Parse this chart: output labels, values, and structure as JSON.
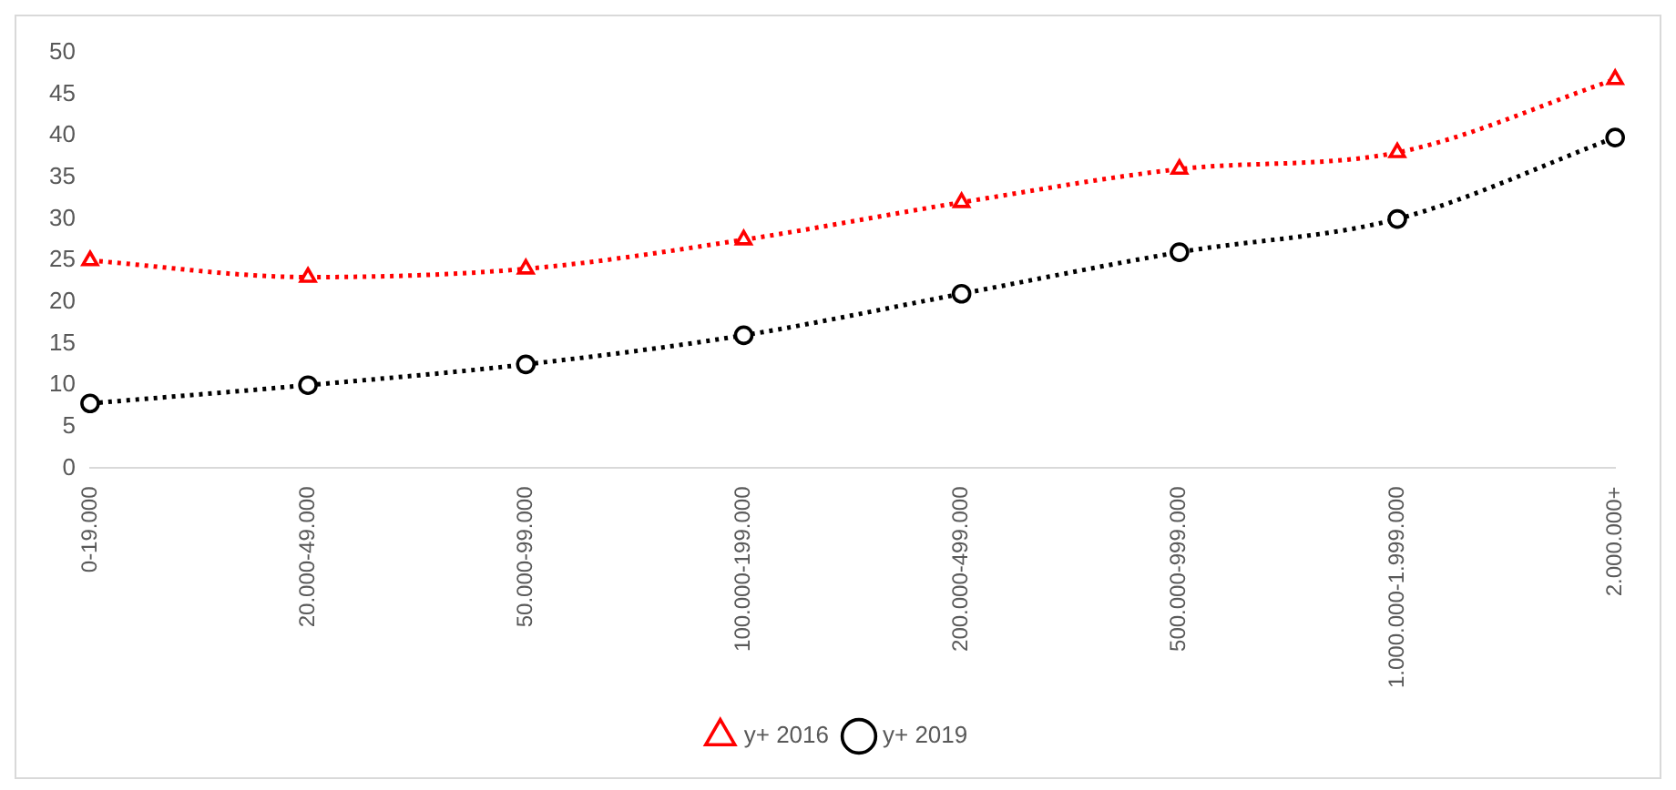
{
  "chart_data": {
    "type": "line",
    "categories": [
      "0-19.000",
      "20.000-49.000",
      "50.000-99.000",
      "100.000-199.000",
      "200.000-499.000",
      "500.000-999.000",
      "1.000.000-1.999.000",
      "2.000.000+"
    ],
    "series": [
      {
        "name": "y+ 2016",
        "color": "#ff0000",
        "marker": "triangle",
        "values": [
          25,
          23,
          24,
          27.5,
          32,
          36,
          38,
          46.8
        ]
      },
      {
        "name": "y+ 2019",
        "color": "#000000",
        "marker": "circle",
        "values": [
          7.8,
          10,
          12.5,
          16,
          21,
          26,
          30,
          39.8
        ]
      }
    ],
    "ylim": [
      0,
      50
    ],
    "yticks": [
      0,
      5,
      10,
      15,
      20,
      25,
      30,
      35,
      40,
      45,
      50
    ],
    "grid": false,
    "legend": "bottom",
    "line_style": "dotted"
  }
}
